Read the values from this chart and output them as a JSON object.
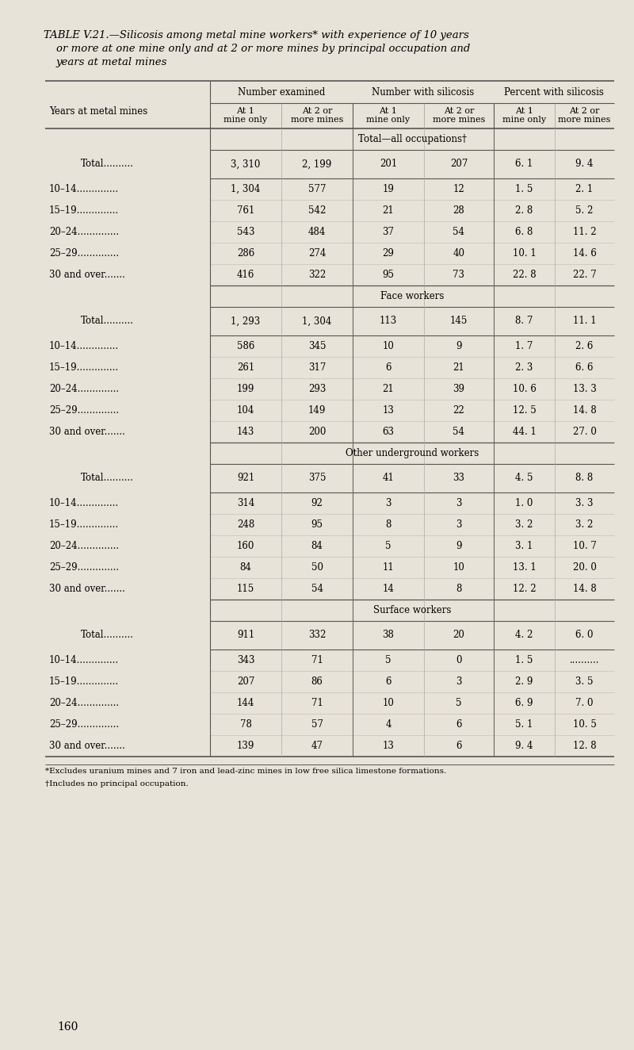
{
  "title_line1": "TABLE V.21.—Silicosis among metal mine workers* with experience of 10 years",
  "title_line2": "or more at one mine only and at 2 or more mines by principal occupation and",
  "title_line3": "years at metal mines",
  "bg_color": "#e8e3d8",
  "col_headers_sub": [
    "At 1\nmine only",
    "At 2 or\nmore mines",
    "At 1\nmine only",
    "At 2 or\nmore mines",
    "At 1\nmine only",
    "At 2 or\nmore mines"
  ],
  "row_label_col": "Years at metal mines",
  "sections": [
    {
      "section_title": "Total—all occupations†",
      "rows": [
        {
          "label": "Total..........",
          "indent": true,
          "is_total": true,
          "vals": [
            "3, 310",
            "2, 199",
            "201",
            "207",
            "6. 1",
            "9. 4"
          ]
        },
        {
          "label": "10–14..............",
          "indent": false,
          "is_total": false,
          "vals": [
            "1, 304",
            "577",
            "19",
            "12",
            "1. 5",
            "2. 1"
          ]
        },
        {
          "label": "15–19..............",
          "indent": false,
          "is_total": false,
          "vals": [
            "761",
            "542",
            "21",
            "28",
            "2. 8",
            "5. 2"
          ]
        },
        {
          "label": "20–24..............",
          "indent": false,
          "is_total": false,
          "vals": [
            "543",
            "484",
            "37",
            "54",
            "6. 8",
            "11. 2"
          ]
        },
        {
          "label": "25–29..............",
          "indent": false,
          "is_total": false,
          "vals": [
            "286",
            "274",
            "29",
            "40",
            "10. 1",
            "14. 6"
          ]
        },
        {
          "label": "30 and over.......  ",
          "indent": false,
          "is_total": false,
          "vals": [
            "416",
            "322",
            "95",
            "73",
            "22. 8",
            "22. 7"
          ]
        }
      ]
    },
    {
      "section_title": "Face workers",
      "rows": [
        {
          "label": "Total..........",
          "indent": true,
          "is_total": true,
          "vals": [
            "1, 293",
            "1, 304",
            "113",
            "145",
            "8. 7",
            "11. 1"
          ]
        },
        {
          "label": "10–14..............",
          "indent": false,
          "is_total": false,
          "vals": [
            "586",
            "345",
            "10",
            "9",
            "1. 7",
            "2. 6"
          ]
        },
        {
          "label": "15–19..............",
          "indent": false,
          "is_total": false,
          "vals": [
            "261",
            "317",
            "6",
            "21",
            "2. 3",
            "6. 6"
          ]
        },
        {
          "label": "20–24..............",
          "indent": false,
          "is_total": false,
          "vals": [
            "199",
            "293",
            "21",
            "39",
            "10. 6",
            "13. 3"
          ]
        },
        {
          "label": "25–29..............",
          "indent": false,
          "is_total": false,
          "vals": [
            "104",
            "149",
            "13",
            "22",
            "12. 5",
            "14. 8"
          ]
        },
        {
          "label": "30 and over.......",
          "indent": false,
          "is_total": false,
          "vals": [
            "143",
            "200",
            "63",
            "54",
            "44. 1",
            "27. 0"
          ]
        }
      ]
    },
    {
      "section_title": "Other underground workers",
      "rows": [
        {
          "label": "Total..........",
          "indent": true,
          "is_total": true,
          "vals": [
            "921",
            "375",
            "41",
            "33",
            "4. 5",
            "8. 8"
          ]
        },
        {
          "label": "10–14..............",
          "indent": false,
          "is_total": false,
          "vals": [
            "314",
            "92",
            "3",
            "3",
            "1. 0",
            "3. 3"
          ]
        },
        {
          "label": "15–19..............",
          "indent": false,
          "is_total": false,
          "vals": [
            "248",
            "95",
            "8",
            "3",
            "3. 2",
            "3. 2"
          ]
        },
        {
          "label": "20–24..............",
          "indent": false,
          "is_total": false,
          "vals": [
            "160",
            "84",
            "5",
            "9",
            "3. 1",
            "10. 7"
          ]
        },
        {
          "label": "25–29..............",
          "indent": false,
          "is_total": false,
          "vals": [
            "84",
            "50",
            "11",
            "10",
            "13. 1",
            "20. 0"
          ]
        },
        {
          "label": "30 and over.......",
          "indent": false,
          "is_total": false,
          "vals": [
            "115",
            "54",
            "14",
            "8",
            "12. 2",
            "14. 8"
          ]
        }
      ]
    },
    {
      "section_title": "Surface workers",
      "rows": [
        {
          "label": "Total..........",
          "indent": true,
          "is_total": true,
          "vals": [
            "911",
            "332",
            "38",
            "20",
            "4. 2",
            "6. 0"
          ]
        },
        {
          "label": "10–14..............",
          "indent": false,
          "is_total": false,
          "vals": [
            "343",
            "71",
            "5",
            "0",
            "1. 5",
            ".........."
          ]
        },
        {
          "label": "15–19..............",
          "indent": false,
          "is_total": false,
          "vals": [
            "207",
            "86",
            "6",
            "3",
            "2. 9",
            "3. 5"
          ]
        },
        {
          "label": "20–24..............",
          "indent": false,
          "is_total": false,
          "vals": [
            "144",
            "71",
            "10",
            "5",
            "6. 9",
            "7. 0"
          ]
        },
        {
          "label": "25–29..............",
          "indent": false,
          "is_total": false,
          "vals": [
            "78",
            "57",
            "4",
            "6",
            "5. 1",
            "10. 5"
          ]
        },
        {
          "label": "30 and over.......",
          "indent": false,
          "is_total": false,
          "vals": [
            "139",
            "47",
            "13",
            "6",
            "9. 4",
            "12. 8"
          ]
        }
      ]
    }
  ],
  "footnotes": [
    "*Excludes uranium mines and 7 iron and lead-zinc mines in low free silica limestone formations.",
    "†Includes no principal occupation."
  ],
  "page_number": "160"
}
